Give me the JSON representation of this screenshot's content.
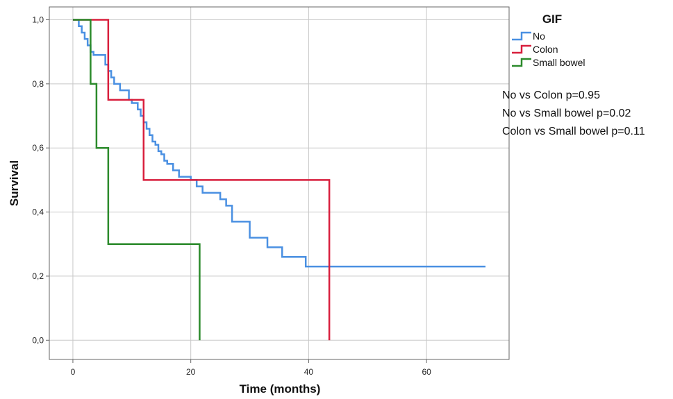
{
  "chart_data": {
    "type": "line",
    "step": true,
    "xlabel": "Time (months)",
    "ylabel": "Survival",
    "xlim": [
      -4,
      74
    ],
    "ylim": [
      -0.06,
      1.04
    ],
    "xticks": [
      0,
      20,
      40,
      60
    ],
    "xtick_labels": [
      "0",
      "20",
      "40",
      "60"
    ],
    "yticks": [
      0.0,
      0.2,
      0.4,
      0.6,
      0.8,
      1.0
    ],
    "ytick_labels": [
      "0,0",
      "0,2",
      "0,4",
      "0,6",
      "0,8",
      "1,0"
    ],
    "grid": true,
    "legend": {
      "title": "GIF",
      "placement": "right"
    },
    "annotations": [
      "No vs Colon p=0.95",
      "No vs Small bowel p=0.02",
      "Colon vs Small bowel p=0.11"
    ],
    "series": [
      {
        "name": "No",
        "color": "#4a90e2",
        "x": [
          0,
          1.0,
          1.5,
          2.0,
          2.5,
          3.0,
          3.5,
          4.0,
          5.5,
          6.0,
          6.5,
          7.0,
          7.5,
          8.0,
          9.5,
          10.0,
          11.0,
          11.5,
          12.0,
          12.5,
          13.0,
          13.5,
          14.0,
          14.5,
          15.0,
          15.5,
          16.0,
          17.0,
          18.0,
          19.0,
          20.0,
          21.0,
          22.0,
          25.0,
          26.0,
          27.0,
          30.0,
          33.0,
          35.5,
          39.5,
          70.0
        ],
        "y": [
          1.0,
          0.98,
          0.96,
          0.94,
          0.92,
          0.9,
          0.89,
          0.89,
          0.86,
          0.84,
          0.82,
          0.8,
          0.8,
          0.78,
          0.75,
          0.74,
          0.72,
          0.7,
          0.68,
          0.66,
          0.64,
          0.62,
          0.61,
          0.59,
          0.58,
          0.56,
          0.55,
          0.53,
          0.51,
          0.51,
          0.5,
          0.48,
          0.46,
          0.44,
          0.42,
          0.37,
          0.32,
          0.29,
          0.26,
          0.23,
          0.23
        ]
      },
      {
        "name": "Colon",
        "color": "#d81e3c",
        "x": [
          0,
          6.0,
          12.0,
          43.5,
          43.5
        ],
        "y": [
          1.0,
          0.75,
          0.5,
          0.0,
          0.0
        ]
      },
      {
        "name": "Small bowel",
        "color": "#2b8a2b",
        "x": [
          0,
          3.0,
          4.0,
          6.0,
          21.5,
          21.5
        ],
        "y": [
          1.0,
          0.8,
          0.6,
          0.3,
          0.0,
          0.0
        ]
      }
    ]
  }
}
